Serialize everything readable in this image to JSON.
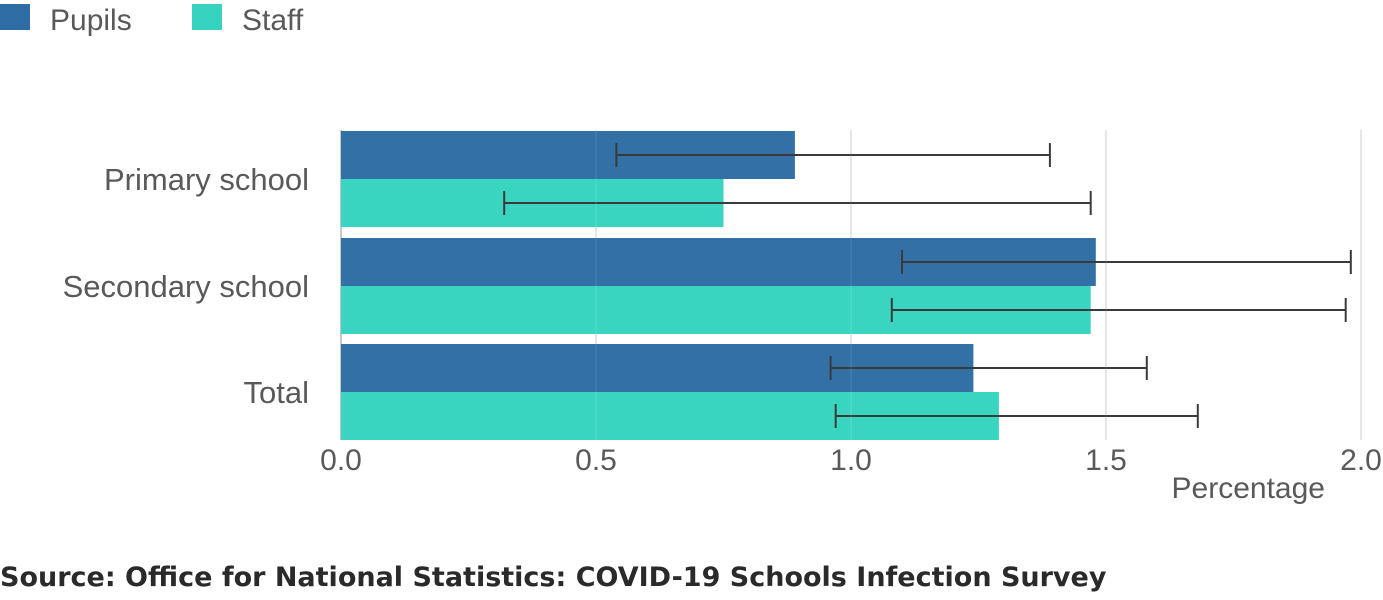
{
  "chart_data": {
    "type": "bar",
    "orientation": "horizontal",
    "categories": [
      "Primary school",
      "Secondary school",
      "Total"
    ],
    "series": [
      {
        "name": "Pupils",
        "color": "#2e6da4",
        "values": [
          0.89,
          1.48,
          1.24
        ],
        "ci_lower": [
          0.54,
          1.1,
          0.96
        ],
        "ci_upper": [
          1.39,
          1.98,
          1.58
        ]
      },
      {
        "name": "Staff",
        "color": "#36d4c0",
        "values": [
          0.75,
          1.47,
          1.29
        ],
        "ci_lower": [
          0.32,
          1.08,
          0.97
        ],
        "ci_upper": [
          1.47,
          1.97,
          1.68
        ]
      }
    ],
    "x_ticks": [
      "0.0",
      "0.5",
      "1.0",
      "1.5",
      "2.0"
    ],
    "x_tick_values": [
      0,
      0.5,
      1.0,
      1.5,
      2.0
    ],
    "xlim": [
      0,
      2.0
    ],
    "xlabel": "Percentage",
    "grid": "vertical",
    "legend_position": "top-left",
    "error_bar_color": "#3a3a3a"
  },
  "source": "Source: Office for National Statistics: COVID-19 Schools Infection Survey"
}
